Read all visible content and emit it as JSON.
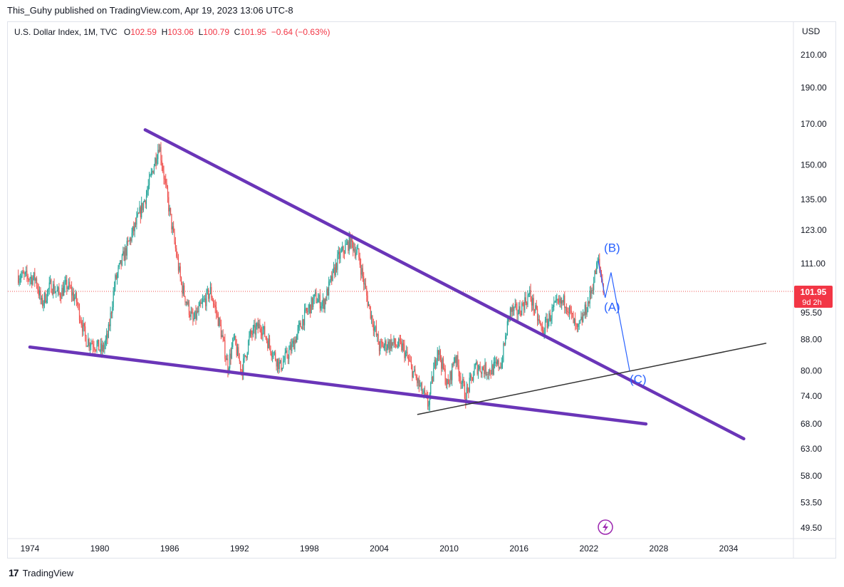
{
  "header": {
    "author": "This_Guhy",
    "published_text": "published on TradingView.com, Apr 19, 2023 13:06 UTC-8"
  },
  "legend": {
    "symbol": "U.S. Dollar Index, 1M, TVC",
    "o_label": "O",
    "o_value": "102.59",
    "h_label": "H",
    "h_value": "103.06",
    "l_label": "L",
    "l_value": "100.79",
    "c_label": "C",
    "c_value": "101.95",
    "change": "−0.64 (−0.63%)"
  },
  "price_badge": {
    "value": "101.95",
    "countdown": "9d 2h"
  },
  "footer": {
    "brand": "TradingView",
    "logo_text": "17"
  },
  "colors": {
    "up": "#26a69a",
    "down": "#ef5350",
    "trendline": "#6a35b8",
    "wave": "#2962ff",
    "badge": "#f23645",
    "black_line": "#333333"
  },
  "icons": {
    "bottom_center": "lightning-icon"
  },
  "chart_data": {
    "type": "candlestick",
    "currency": "USD",
    "y_ticks": [
      210.0,
      190.0,
      170.0,
      150.0,
      135.0,
      123.0,
      111.0,
      95.5,
      88.0,
      80.0,
      74.0,
      68.0,
      63.0,
      58.0,
      53.5,
      49.5
    ],
    "y_scale": "log",
    "x_ticks": [
      "1974",
      "1980",
      "1986",
      "1992",
      "1998",
      "2004",
      "2010",
      "2016",
      "2022",
      "2028",
      "2034"
    ],
    "series_path": [
      [
        1973.0,
        107
      ],
      [
        1974.5,
        106
      ],
      [
        1975.0,
        98
      ],
      [
        1975.8,
        104
      ],
      [
        1976.5,
        101
      ],
      [
        1977.2,
        104
      ],
      [
        1978.0,
        99
      ],
      [
        1978.8,
        88
      ],
      [
        1979.5,
        87
      ],
      [
        1980.2,
        85
      ],
      [
        1980.7,
        89
      ],
      [
        1981.3,
        105
      ],
      [
        1982.0,
        113
      ],
      [
        1983.0,
        124
      ],
      [
        1984.0,
        137
      ],
      [
        1985.1,
        160
      ],
      [
        1985.6,
        142
      ],
      [
        1986.2,
        124
      ],
      [
        1987.0,
        104
      ],
      [
        1988.0,
        93
      ],
      [
        1988.8,
        98
      ],
      [
        1989.5,
        102
      ],
      [
        1990.3,
        92
      ],
      [
        1991.0,
        81
      ],
      [
        1991.5,
        88
      ],
      [
        1992.2,
        80
      ],
      [
        1992.9,
        89
      ],
      [
        1993.8,
        92
      ],
      [
        1994.8,
        85
      ],
      [
        1995.5,
        81
      ],
      [
        1996.5,
        86
      ],
      [
        1997.5,
        94
      ],
      [
        1998.5,
        100
      ],
      [
        1999.2,
        98
      ],
      [
        2000.5,
        113
      ],
      [
        2001.5,
        119
      ],
      [
        2002.2,
        114
      ],
      [
        2003.0,
        99
      ],
      [
        2004.0,
        86
      ],
      [
        2005.0,
        87
      ],
      [
        2006.0,
        86
      ],
      [
        2007.0,
        79
      ],
      [
        2008.2,
        72
      ],
      [
        2009.0,
        86
      ],
      [
        2009.9,
        76
      ],
      [
        2010.5,
        84
      ],
      [
        2011.4,
        74
      ],
      [
        2012.3,
        81
      ],
      [
        2013.5,
        80
      ],
      [
        2014.5,
        82
      ],
      [
        2015.2,
        96
      ],
      [
        2016.0,
        96
      ],
      [
        2016.9,
        101
      ],
      [
        2018.0,
        90
      ],
      [
        2019.0,
        97
      ],
      [
        2020.0,
        99
      ],
      [
        2021.0,
        90
      ],
      [
        2022.0,
        99
      ],
      [
        2022.8,
        112
      ],
      [
        2023.3,
        102
      ]
    ],
    "trendlines": [
      {
        "name": "upper-purple",
        "from": [
          1983.9,
          167
        ],
        "to": [
          2035.3,
          65
        ]
      },
      {
        "name": "lower-purple",
        "from": [
          1974.0,
          86
        ],
        "to": [
          2026.9,
          68
        ]
      },
      {
        "name": "black-support",
        "from": [
          2007.3,
          70
        ],
        "to": [
          2037.2,
          87
        ]
      }
    ],
    "wave_path": [
      [
        2022.8,
        112
      ],
      [
        2023.4,
        100
      ],
      [
        2023.9,
        108
      ],
      [
        2025.5,
        80
      ]
    ],
    "wave_labels": [
      {
        "text": "(B)",
        "x": 2023.3,
        "y": 115
      },
      {
        "text": "(A)",
        "x": 2023.3,
        "y": 96
      },
      {
        "text": "(C)",
        "x": 2025.5,
        "y": 77
      }
    ],
    "last_price": 101.95
  }
}
